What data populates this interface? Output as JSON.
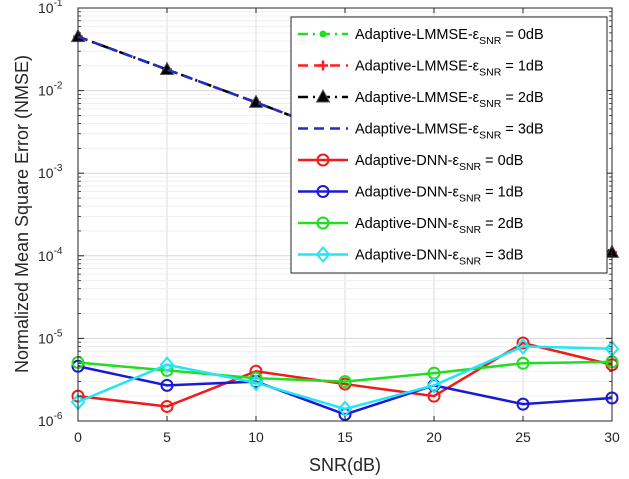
{
  "chart_data": {
    "type": "line",
    "xlabel": "SNR(dB)",
    "ylabel": "Normalized Mean Square Error (NMSE)",
    "xlim": [
      0,
      30
    ],
    "ylim": [
      1e-06,
      0.1
    ],
    "yscale": "log",
    "grid": true,
    "legend_position": "top-right",
    "x": [
      0,
      5,
      10,
      15,
      20,
      25,
      30
    ],
    "x_ticks": [
      "0",
      "5",
      "10",
      "15",
      "20",
      "25",
      "30"
    ],
    "y_ticks": [
      {
        "base": "10",
        "exp": "-1"
      },
      {
        "base": "10",
        "exp": "-2"
      },
      {
        "base": "10",
        "exp": "-3"
      },
      {
        "base": "10",
        "exp": "-4"
      },
      {
        "base": "10",
        "exp": "-5"
      },
      {
        "base": "10",
        "exp": "-6"
      }
    ],
    "series": [
      {
        "name_main": "Adaptive-LMMSE-ε",
        "name_sub": "SNR",
        "name_tail": " = 0dB",
        "color": "#22dd22",
        "dash": "dash-dot",
        "marker": "dot",
        "values": [
          0.045,
          0.018,
          0.0072,
          0.0028,
          0.0011,
          0.00043,
          0.00011
        ]
      },
      {
        "name_main": "Adaptive-LMMSE-ε",
        "name_sub": "SNR",
        "name_tail": " = 1dB",
        "color": "#ff1f1f",
        "dash": "dashed",
        "marker": "plus",
        "values": [
          0.045,
          0.018,
          0.0072,
          0.0028,
          0.0011,
          0.00043,
          0.00011
        ]
      },
      {
        "name_main": "Adaptive-LMMSE-ε",
        "name_sub": "SNR",
        "name_tail": " = 2dB",
        "color": "#000000",
        "dash": "dash-dot",
        "marker": "triangle",
        "values": [
          0.045,
          0.018,
          0.0072,
          0.0028,
          0.0011,
          0.00043,
          0.00011
        ]
      },
      {
        "name_main": "Adaptive-LMMSE-ε",
        "name_sub": "SNR",
        "name_tail": " = 3dB",
        "color": "#1f2fc8",
        "dash": "dashed",
        "marker": "none",
        "values": [
          0.045,
          0.018,
          0.0072,
          0.0028,
          0.0011,
          0.00043,
          0.00011
        ]
      },
      {
        "name_main": "Adaptive-DNN-ε",
        "name_sub": "SNR",
        "name_tail": " = 0dB",
        "color": "#ee1c1c",
        "dash": "solid",
        "marker": "circle",
        "values": [
          2e-06,
          1.5e-06,
          4e-06,
          2.8e-06,
          2e-06,
          8.8e-06,
          4.8e-06
        ]
      },
      {
        "name_main": "Adaptive-DNN-ε",
        "name_sub": "SNR",
        "name_tail": " = 1dB",
        "color": "#1a1ad6",
        "dash": "solid",
        "marker": "circle",
        "values": [
          4.6e-06,
          2.7e-06,
          3e-06,
          1.2e-06,
          2.7e-06,
          1.6e-06,
          1.9e-06
        ]
      },
      {
        "name_main": "Adaptive-DNN-ε",
        "name_sub": "SNR",
        "name_tail": " = 2dB",
        "color": "#22dd22",
        "dash": "solid",
        "marker": "circle",
        "values": [
          5.1e-06,
          4.1e-06,
          3.3e-06,
          3e-06,
          3.8e-06,
          5e-06,
          5.2e-06
        ]
      },
      {
        "name_main": "Adaptive-DNN-ε",
        "name_sub": "SNR",
        "name_tail": " = 3dB",
        "color": "#22e6f2",
        "dash": "solid",
        "marker": "diamond",
        "values": [
          1.7e-06,
          4.8e-06,
          2.9e-06,
          1.4e-06,
          2.7e-06,
          8e-06,
          7.5e-06
        ]
      }
    ]
  }
}
